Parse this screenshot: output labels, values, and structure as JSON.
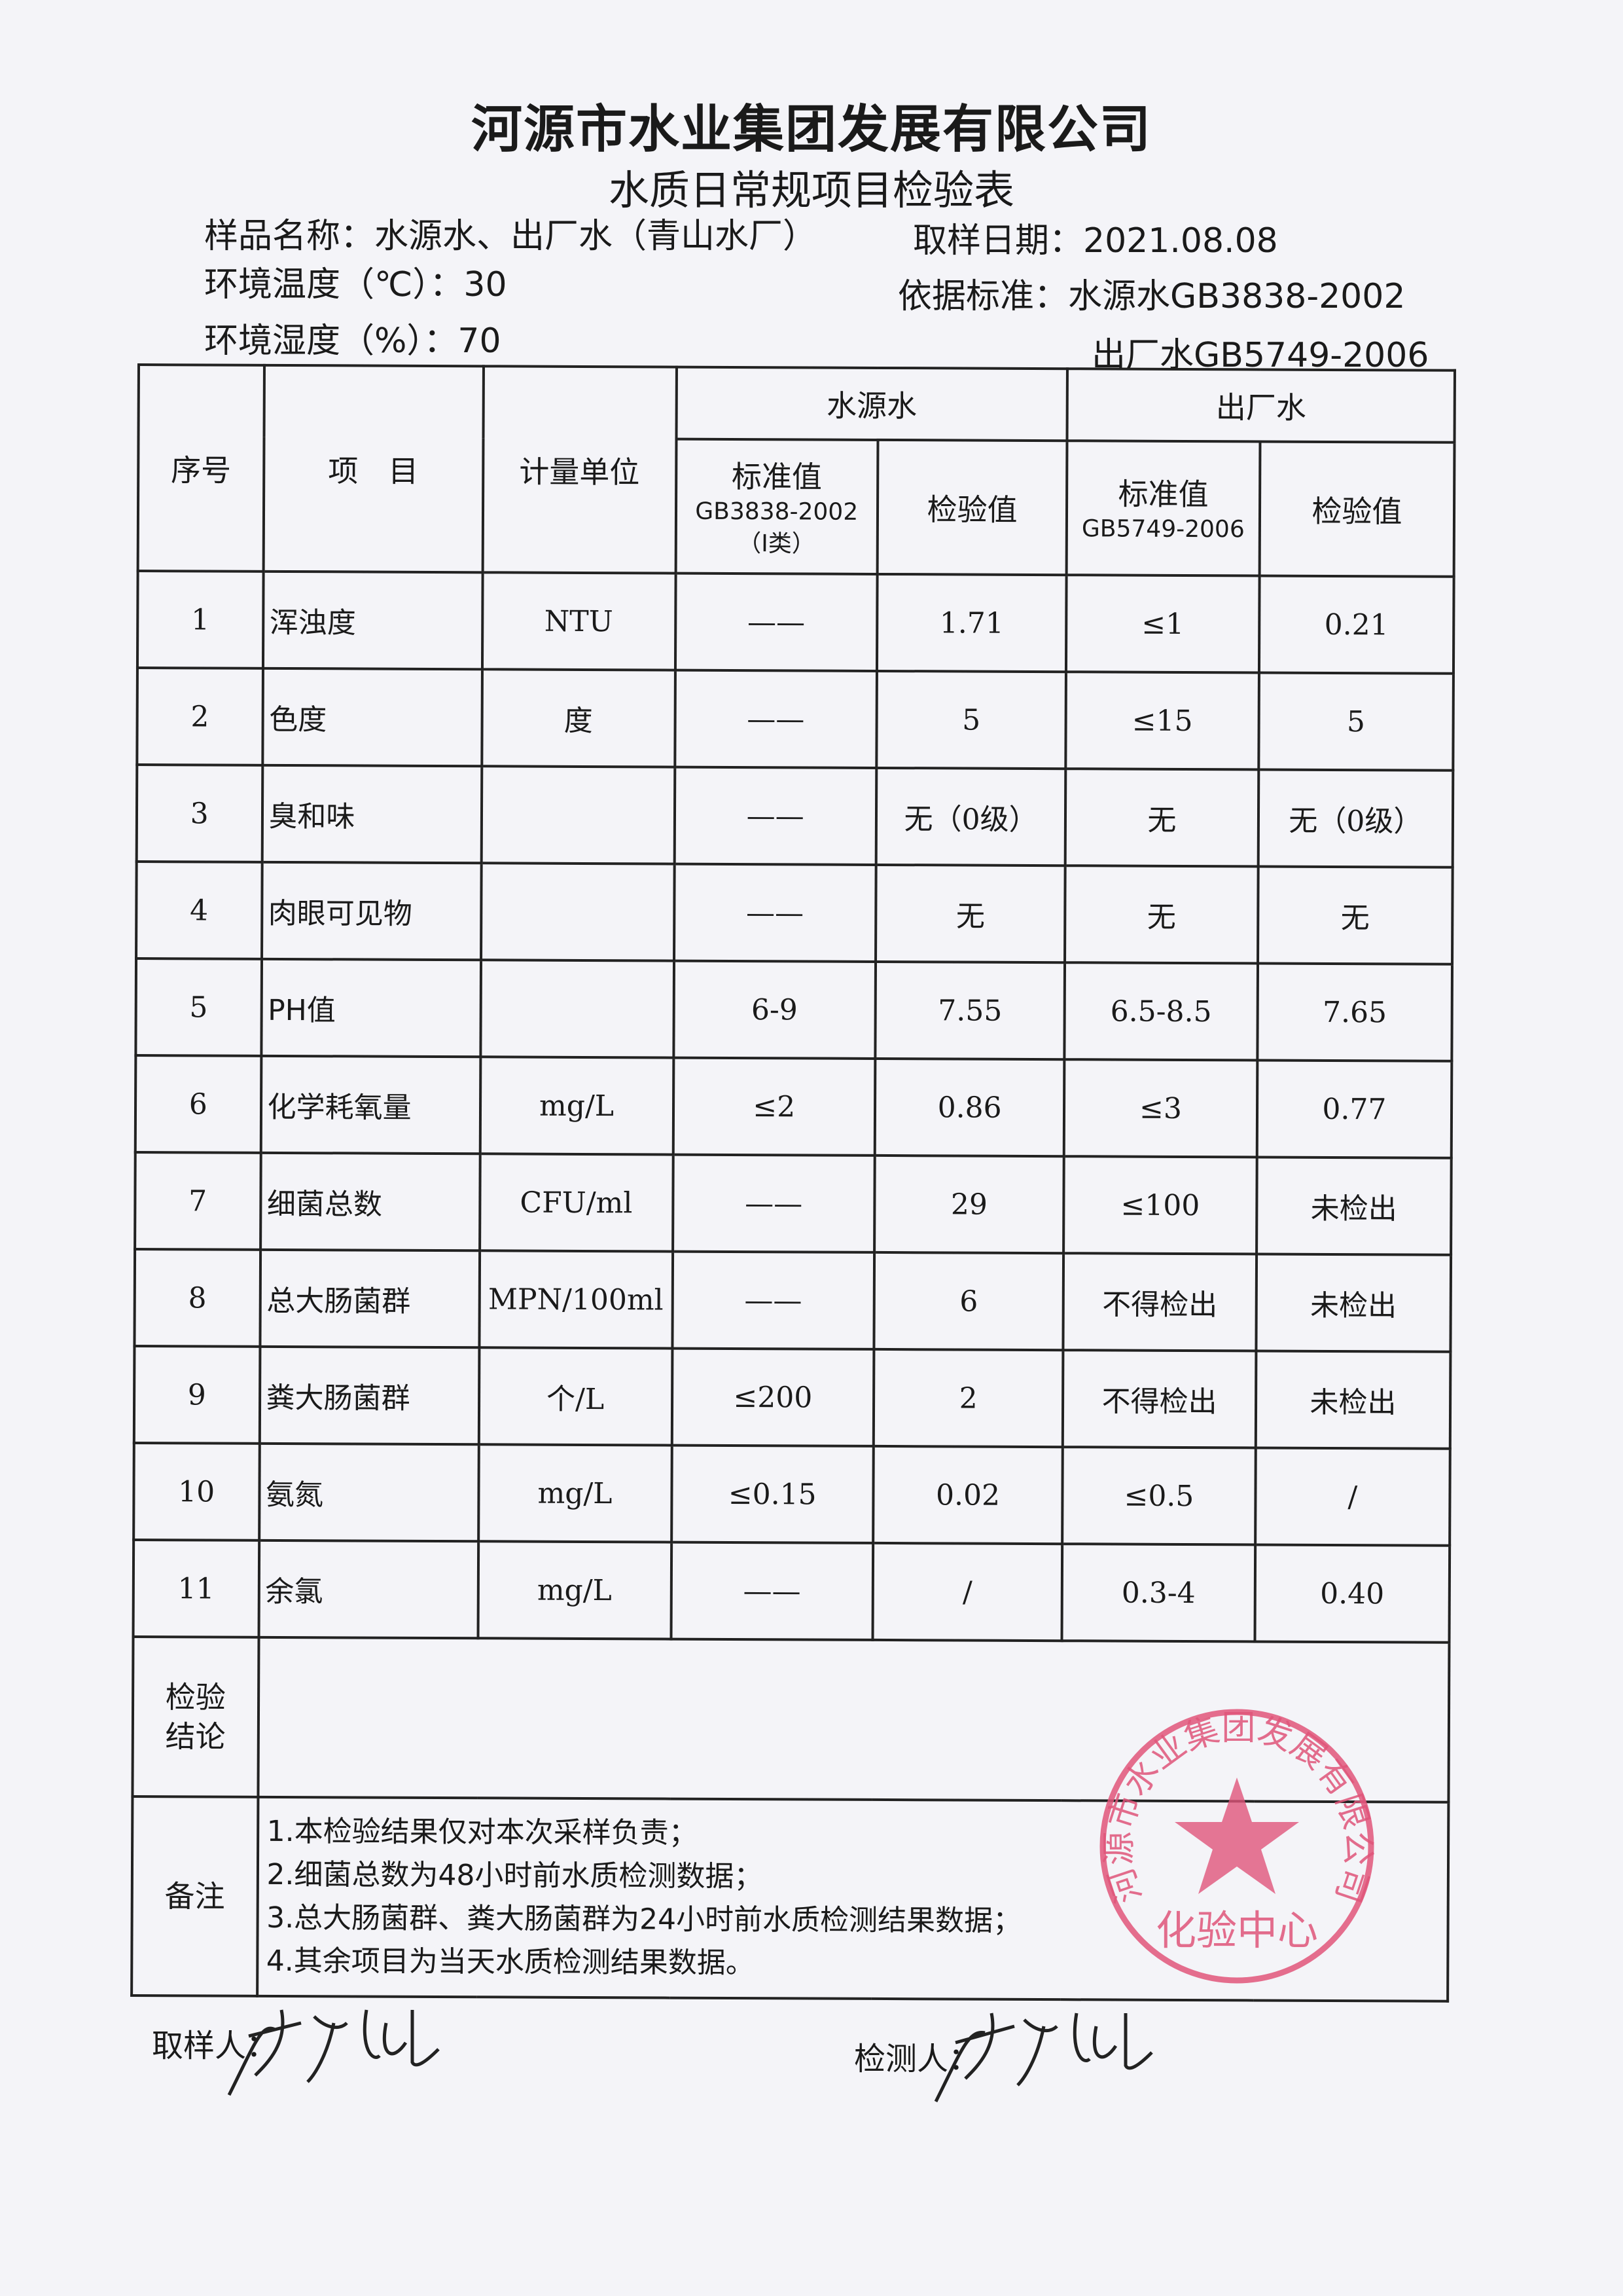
{
  "header": {
    "company": "河源市水业集团发展有限公司",
    "form_title": "水质日常规项目检验表"
  },
  "meta": {
    "sample_name_label": "样品名称：",
    "sample_name": "水源水、出厂水（青山水厂）",
    "sample_date_label": "取样日期：",
    "sample_date": "2021.08.08",
    "temp_label": "环境温度（℃）：",
    "temp": "30",
    "humidity_label": "环境湿度（%）：",
    "humidity": "70",
    "standard_label": "依据标准：",
    "standard_source": "水源水GB3838-2002",
    "standard_outlet": "出厂水GB5749-2006"
  },
  "table": {
    "headers": {
      "no": "序号",
      "item": "项　目",
      "unit": "计量单位",
      "source_group": "水源水",
      "outlet_group": "出厂水",
      "source_std_line1": "标准值",
      "source_std_line2": "GB3838-2002",
      "source_std_line3": "（Ⅰ类）",
      "source_result": "检验值",
      "outlet_std_line1": "标准值",
      "outlet_std_line2": "GB5749-2006",
      "outlet_result": "检验值"
    },
    "rows": [
      {
        "no": "1",
        "item": "浑浊度",
        "unit": "NTU",
        "source_std": "——",
        "source_val": "1.71",
        "outlet_std": "≤1",
        "outlet_val": "0.21"
      },
      {
        "no": "2",
        "item": "色度",
        "unit": "度",
        "source_std": "——",
        "source_val": "5",
        "outlet_std": "≤15",
        "outlet_val": "5"
      },
      {
        "no": "3",
        "item": "臭和味",
        "unit": "",
        "source_std": "——",
        "source_val": "无（0级）",
        "outlet_std": "无",
        "outlet_val": "无（0级）"
      },
      {
        "no": "4",
        "item": "肉眼可见物",
        "unit": "",
        "source_std": "——",
        "source_val": "无",
        "outlet_std": "无",
        "outlet_val": "无"
      },
      {
        "no": "5",
        "item": "PH值",
        "unit": "",
        "source_std": "6-9",
        "source_val": "7.55",
        "outlet_std": "6.5-8.5",
        "outlet_val": "7.65"
      },
      {
        "no": "6",
        "item": "化学耗氧量",
        "unit": "mg/L",
        "source_std": "≤2",
        "source_val": "0.86",
        "outlet_std": "≤3",
        "outlet_val": "0.77"
      },
      {
        "no": "7",
        "item": "细菌总数",
        "unit": "CFU/ml",
        "source_std": "——",
        "source_val": "29",
        "outlet_std": "≤100",
        "outlet_val": "未检出"
      },
      {
        "no": "8",
        "item": "总大肠菌群",
        "unit": "MPN/100ml",
        "source_std": "——",
        "source_val": "6",
        "outlet_std": "不得检出",
        "outlet_val": "未检出"
      },
      {
        "no": "9",
        "item": "粪大肠菌群",
        "unit": "个/L",
        "source_std": "≤200",
        "source_val": "2",
        "outlet_std": "不得检出",
        "outlet_val": "未检出"
      },
      {
        "no": "10",
        "item": "氨氮",
        "unit": "mg/L",
        "source_std": "≤0.15",
        "source_val": "0.02",
        "outlet_std": "≤0.5",
        "outlet_val": "/"
      },
      {
        "no": "11",
        "item": "余氯",
        "unit": "mg/L",
        "source_std": "——",
        "source_val": "/",
        "outlet_std": "0.3-4",
        "outlet_val": "0.40"
      }
    ],
    "conclusion_label_1": "检验",
    "conclusion_label_2": "结论",
    "conclusion": "",
    "remarks_label": "备注",
    "remarks": [
      "1.本检验结果仅对本次采样负责；",
      "2.细菌总数为48小时前水质检测数据；",
      "3.总大肠菌群、粪大肠菌群为24小时前水质检测结果数据；",
      "4.其余项目为当天水质检测结果数据。"
    ]
  },
  "footer": {
    "sampler_label": "取样人：",
    "inspector_label": "检测人："
  },
  "stamp": {
    "ring_text": "河源市水业集团发展有限公司",
    "center_text": "化验中心",
    "color": "#e0557a"
  }
}
